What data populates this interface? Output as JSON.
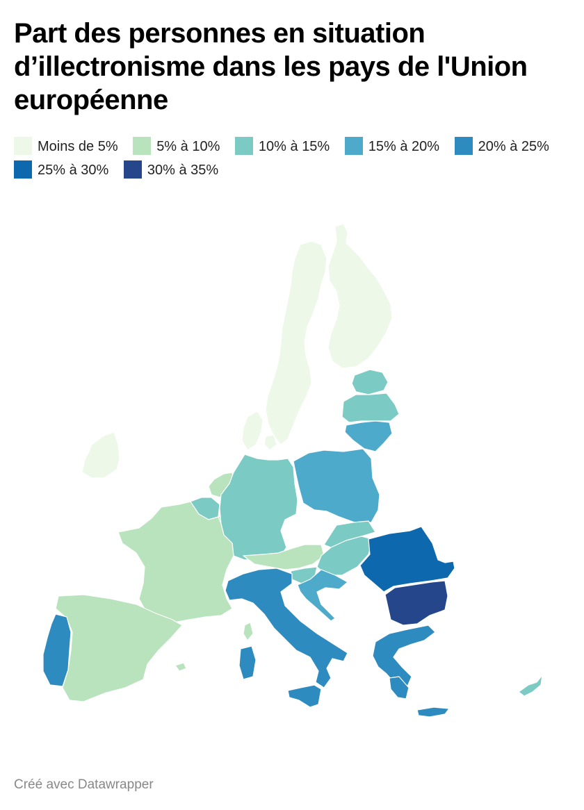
{
  "title": "Part des personnes en situation d’illectronisme dans les pays de l'Union européenne",
  "legend": [
    {
      "label": "Moins de 5%",
      "color": "#edf8e9"
    },
    {
      "label": "5% à 10%",
      "color": "#b8e3bd"
    },
    {
      "label": "10% à 15%",
      "color": "#7bcac4"
    },
    {
      "label": "15% à 20%",
      "color": "#4eaacb"
    },
    {
      "label": "20% à 25%",
      "color": "#2e8bbf"
    },
    {
      "label": "25% à 30%",
      "color": "#0e68ad"
    },
    {
      "label": "30% à 35%",
      "color": "#26468c"
    }
  ],
  "countries": [
    {
      "name": "Suède",
      "class": 0
    },
    {
      "name": "Finlande",
      "class": 0
    },
    {
      "name": "Danemark",
      "class": 0
    },
    {
      "name": "Irlande",
      "class": 0
    },
    {
      "name": "Pays-Bas",
      "class": 1
    },
    {
      "name": "Luxembourg",
      "class": 1
    },
    {
      "name": "France",
      "class": 1
    },
    {
      "name": "Espagne",
      "class": 1
    },
    {
      "name": "Autriche",
      "class": 1
    },
    {
      "name": "Malte",
      "class": 1
    },
    {
      "name": "Estonie",
      "class": 2
    },
    {
      "name": "Lettonie",
      "class": 2
    },
    {
      "name": "Belgique",
      "class": 2
    },
    {
      "name": "Allemagne",
      "class": 2
    },
    {
      "name": "Slovaquie",
      "class": 2
    },
    {
      "name": "Hongrie",
      "class": 2
    },
    {
      "name": "Slovénie",
      "class": 2
    },
    {
      "name": "Chypre",
      "class": 2
    },
    {
      "name": "Lituanie",
      "class": 3
    },
    {
      "name": "Pologne",
      "class": 3
    },
    {
      "name": "Croatie",
      "class": 3
    },
    {
      "name": "Portugal",
      "class": 4
    },
    {
      "name": "Italie",
      "class": 4
    },
    {
      "name": "Grèce",
      "class": 4
    },
    {
      "name": "Roumanie",
      "class": 5
    },
    {
      "name": "Bulgarie",
      "class": 6
    }
  ],
  "footer": "Créé avec Datawrapper"
}
